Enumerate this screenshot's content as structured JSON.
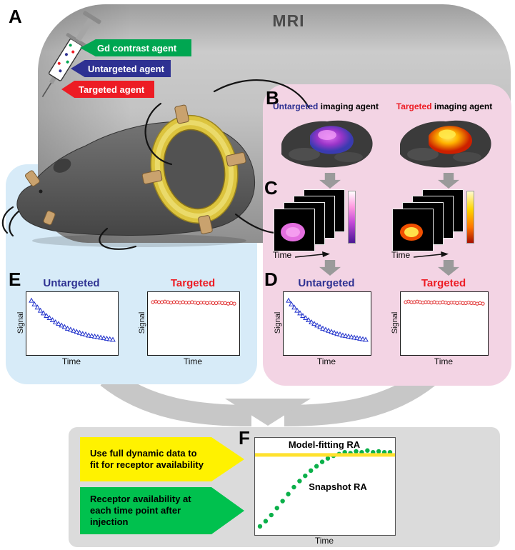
{
  "figure": {
    "mri_label": "MRI",
    "panel_letters": {
      "a": "A",
      "b": "B",
      "c": "C",
      "d": "D",
      "e": "E",
      "f": "F"
    }
  },
  "agents": {
    "gd": {
      "label": "Gd contrast agent",
      "color": "#00a651"
    },
    "untargeted": {
      "label": "Untargeted agent",
      "color": "#2e3192"
    },
    "targeted": {
      "label": "Targeted agent",
      "color": "#ed1c24"
    }
  },
  "panel_b": {
    "untargeted_caption_highlight": "Untargeted",
    "untargeted_caption_rest": " imaging agent",
    "targeted_caption_highlight": "Targeted",
    "targeted_caption_rest": " imaging agent"
  },
  "panel_c": {
    "time_label": "Time"
  },
  "plots": {
    "untargeted_title": "Untargeted",
    "targeted_title": "Targeted",
    "signal_label": "Signal",
    "time_label": "Time"
  },
  "panel_f": {
    "yellow_callout": "Use full dynamic data to fit for receptor availability",
    "green_callout": "Receptor availability at each time point after injection",
    "model_fitting_label": "Model-fitting RA",
    "snapshot_label": "Snapshot RA",
    "time_label": "Time"
  },
  "colors": {
    "agent_green": "#00a651",
    "agent_blue": "#2e3192",
    "agent_red": "#ed1c24",
    "pink_panel": "#f3d4e4",
    "blue_panel": "#d7ebf8",
    "gray_panel": "#dbdbdb",
    "marker_blue": "#2233cc",
    "marker_red": "#e03030",
    "snapshot_green": "#0bb04a",
    "model_yellow": "#ffe12e",
    "callout_yellow": "#fff200",
    "callout_green": "#00c14e",
    "coil_yellow": "#dcc43e"
  },
  "chart_data": [
    {
      "id": "untargeted-signal",
      "type": "scatter",
      "title": "Untargeted",
      "xlabel": "Time",
      "ylabel": "Signal",
      "marker": "open-triangle",
      "color": "#2233cc",
      "shown_in_panels": [
        "E",
        "D"
      ],
      "note": "Signal decays over time; axes unlabeled (normalized 0-1 values)",
      "values": [
        0.95,
        0.88,
        0.82,
        0.76,
        0.71,
        0.66,
        0.62,
        0.58,
        0.54,
        0.51,
        0.48,
        0.45,
        0.42,
        0.4,
        0.38,
        0.36,
        0.34,
        0.32,
        0.31,
        0.29,
        0.28,
        0.27,
        0.26,
        0.25,
        0.24,
        0.23,
        0.22,
        0.21
      ]
    },
    {
      "id": "targeted-signal",
      "type": "scatter",
      "title": "Targeted",
      "xlabel": "Time",
      "ylabel": "Signal",
      "marker": "open-circle",
      "color": "#e03030",
      "shown_in_panels": [
        "E",
        "D"
      ],
      "note": "Signal stays nearly constant over time (normalized 0-1 values)",
      "values": [
        0.92,
        0.93,
        0.92,
        0.92,
        0.93,
        0.92,
        0.91,
        0.92,
        0.92,
        0.91,
        0.92,
        0.91,
        0.91,
        0.92,
        0.91,
        0.9,
        0.91,
        0.91,
        0.9,
        0.91,
        0.9,
        0.9,
        0.91,
        0.9,
        0.9,
        0.89,
        0.9,
        0.89
      ]
    },
    {
      "id": "receptor-availability",
      "type": "scatter",
      "xlabel": "Time",
      "shown_in_panels": [
        "F"
      ],
      "series": [
        {
          "name": "Snapshot RA",
          "marker": "dot",
          "color": "#0bb04a",
          "values": [
            0.05,
            0.11,
            0.18,
            0.26,
            0.34,
            0.42,
            0.5,
            0.57,
            0.63,
            0.69,
            0.74,
            0.79,
            0.83,
            0.86,
            0.88,
            0.9,
            0.89,
            0.91,
            0.9,
            0.92,
            0.9,
            0.91,
            0.9,
            0.9
          ]
        },
        {
          "name": "Model-fitting RA",
          "type": "hline",
          "color": "#ffe12e",
          "value": 0.87
        }
      ]
    }
  ]
}
